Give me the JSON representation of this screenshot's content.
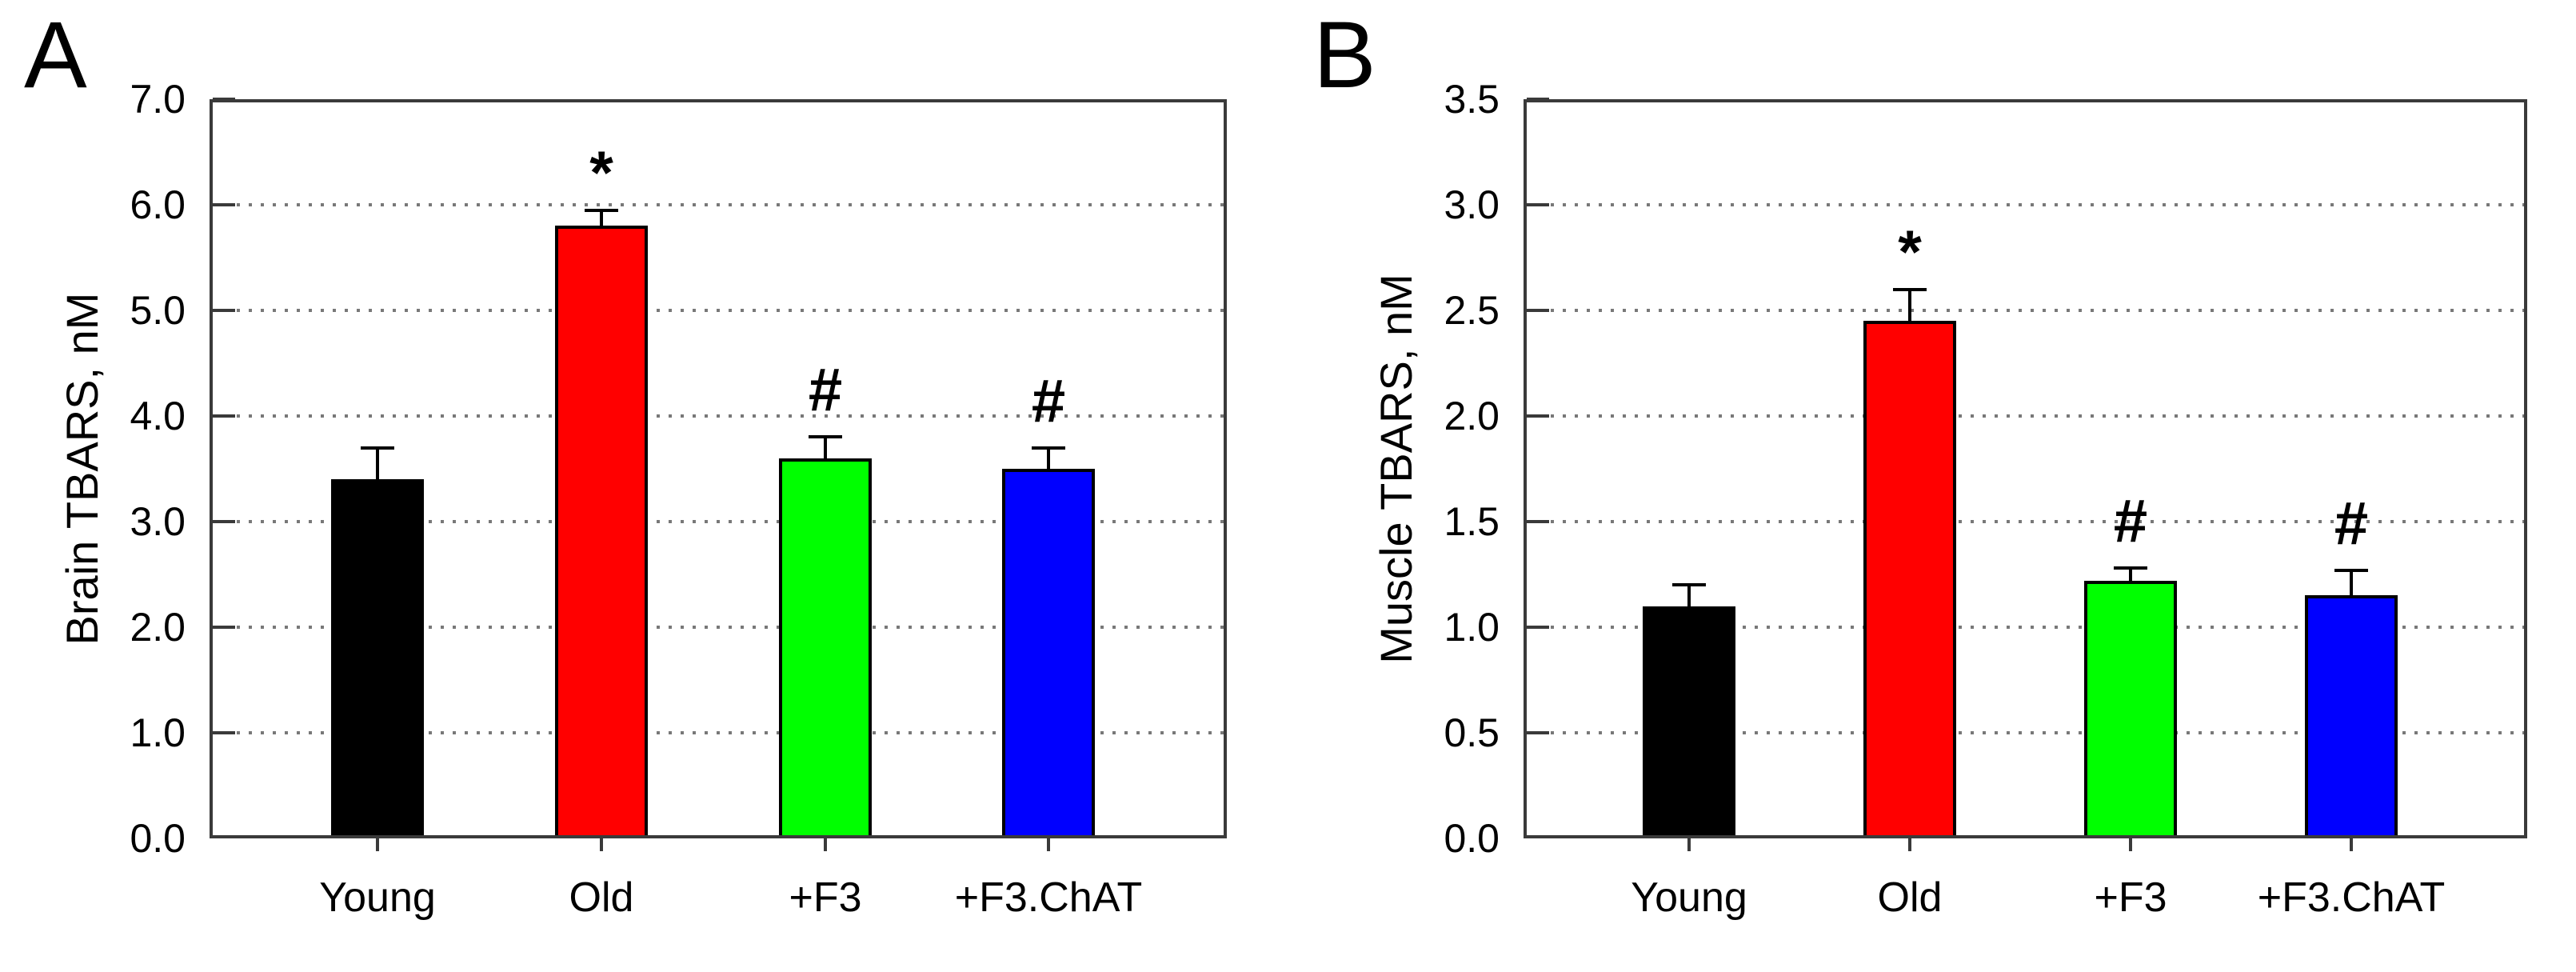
{
  "figure": {
    "background": "#FFFFFF",
    "panel_letters": [
      "A",
      "B"
    ]
  },
  "chart_data": [
    {
      "type": "bar",
      "panel_letter": "A",
      "title": "",
      "xlabel": "",
      "ylabel": "Brain TBARS, nM",
      "ylim": [
        0.0,
        7.0
      ],
      "ytick_values": [
        0,
        1,
        2,
        3,
        4,
        5,
        6,
        7
      ],
      "ytick_labels": [
        "0.0",
        "1.0",
        "2.0",
        "3.0",
        "4.0",
        "5.0",
        "6.0",
        "7.0"
      ],
      "grid": "horizontal dotted lines at major ticks",
      "legend": "none",
      "categories": [
        "Young",
        "Old",
        "+F3",
        "+F3.ChAT"
      ],
      "series": [
        {
          "name": "Brain TBARS",
          "values": [
            3.4,
            5.8,
            3.6,
            3.5
          ],
          "errors_upper": [
            0.3,
            0.15,
            0.2,
            0.2
          ]
        }
      ],
      "bar_colors": [
        "#000000",
        "#FF0000",
        "#00FF00",
        "#0000FF"
      ],
      "bar_outline_color": "#000000",
      "error_bar_color": "#000000",
      "significance_annotations": [
        "",
        "*",
        "#",
        "#"
      ]
    },
    {
      "type": "bar",
      "panel_letter": "B",
      "title": "",
      "xlabel": "",
      "ylabel": "Muscle TBARS, nM",
      "ylim": [
        0.0,
        3.5
      ],
      "ytick_values": [
        0,
        0.5,
        1,
        1.5,
        2,
        2.5,
        3,
        3.5
      ],
      "ytick_labels": [
        "0.0",
        "0.5",
        "1.0",
        "1.5",
        "2.0",
        "2.5",
        "3.0",
        "3.5"
      ],
      "grid": "horizontal dotted lines at major ticks",
      "legend": "none",
      "categories": [
        "Young",
        "Old",
        "+F3",
        "+F3.ChAT"
      ],
      "series": [
        {
          "name": "Muscle TBARS",
          "values": [
            1.1,
            2.45,
            1.22,
            1.15
          ],
          "errors_upper": [
            0.1,
            0.15,
            0.06,
            0.12
          ]
        }
      ],
      "bar_colors": [
        "#000000",
        "#FF0000",
        "#00FF00",
        "#0000FF"
      ],
      "bar_outline_color": "#000000",
      "error_bar_color": "#000000",
      "significance_annotations": [
        "",
        "*",
        "#",
        "#"
      ]
    }
  ]
}
